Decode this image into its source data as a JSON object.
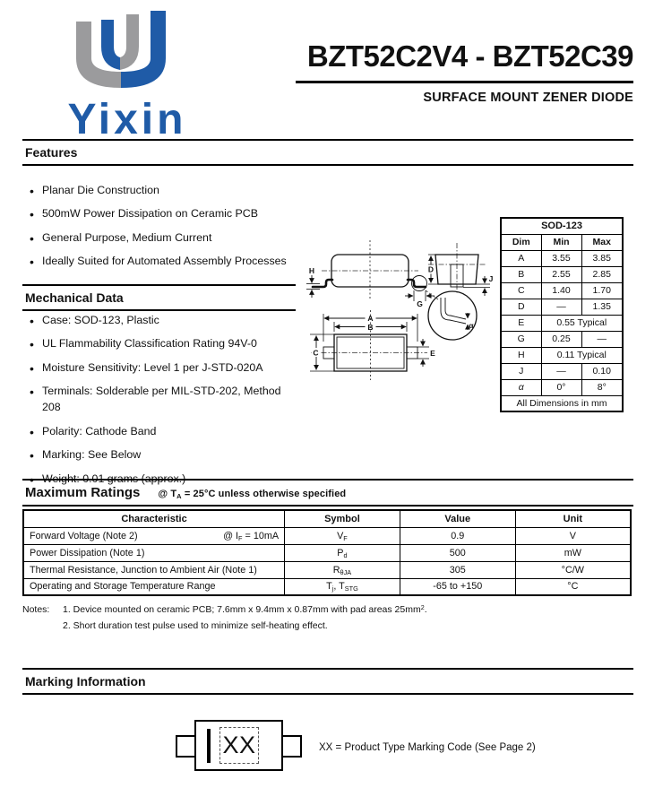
{
  "header": {
    "logo_text": "Yixin",
    "logo_blue": "#1f5ba7",
    "logo_gray": "#9b9b9d",
    "title": "BZT52C2V4 - BZT52C39",
    "subtitle": "SURFACE MOUNT ZENER DIODE"
  },
  "features": {
    "heading": "Features",
    "items": [
      "Planar Die Construction",
      "500mW Power Dissipation on Ceramic PCB",
      "General Purpose, Medium Current",
      "Ideally Suited for Automated Assembly Processes"
    ]
  },
  "mechanical": {
    "heading": "Mechanical Data",
    "items": [
      "Case: SOD-123, Plastic",
      "UL Flammability Classification Rating 94V-0",
      "Moisture Sensitivity: Level 1 per J-STD-020A",
      "Terminals: Solderable per MIL-STD-202, Method 208",
      "Polarity: Cathode Band",
      "Marking: See Below",
      "Weight: 0.01 grams (approx.)"
    ]
  },
  "package_drawing": {
    "labels": {
      "A": "A",
      "B": "B",
      "C": "C",
      "D": "D",
      "E": "E",
      "G": "G",
      "H": "H",
      "J": "J",
      "alpha": "α"
    }
  },
  "sod_table": {
    "title": "SOD-123",
    "headers": [
      "Dim",
      "Min",
      "Max"
    ],
    "rows": [
      {
        "dim": "A",
        "min": "3.55",
        "max": "3.85"
      },
      {
        "dim": "B",
        "min": "2.55",
        "max": "2.85"
      },
      {
        "dim": "C",
        "min": "1.40",
        "max": "1.70"
      },
      {
        "dim": "D",
        "min": "—",
        "max": "1.35"
      },
      {
        "dim": "E",
        "merged": "0.55 Typical"
      },
      {
        "dim": "G",
        "min": "0.25",
        "max": "—"
      },
      {
        "dim": "H",
        "merged": "0.11 Typical"
      },
      {
        "dim": "J",
        "min": "—",
        "max": "0.10"
      },
      {
        "dim": "α",
        "min": "0°",
        "max": "8°"
      }
    ],
    "footer": "All Dimensions in mm"
  },
  "max_ratings": {
    "heading": "Maximum Ratings",
    "condition": "@ T~A~ = 25°C unless otherwise specified",
    "headers": [
      "Characteristic",
      "Symbol",
      "Value",
      "Unit"
    ],
    "rows": [
      {
        "characteristic": "Forward Voltage (Note 2)",
        "condition": "@ I~F~ = 10mA",
        "symbol": "V~F~",
        "value": "0.9",
        "unit": "V"
      },
      {
        "characteristic": "Power Dissipation (Note 1)",
        "condition": "",
        "symbol": "P~d~",
        "value": "500",
        "unit": "mW"
      },
      {
        "characteristic": "Thermal Resistance, Junction to Ambient Air (Note 1)",
        "condition": "",
        "symbol": "R~θJA~",
        "value": "305",
        "unit": "°C/W"
      },
      {
        "characteristic": "Operating and Storage Temperature Range",
        "condition": "",
        "symbol": "T~j~, T~STG~",
        "value": "-65 to +150",
        "unit": "°C"
      }
    ]
  },
  "notes": {
    "label": "Notes:",
    "items": [
      "1. Device mounted on ceramic PCB; 7.6mm x 9.4mm x 0.87mm with pad areas 25mm^2^.",
      "2. Short duration test pulse used to minimize self-heating effect."
    ]
  },
  "marking": {
    "heading": "Marking Information",
    "code": "XX",
    "legend": "XX = Product Type Marking Code (See Page 2)"
  }
}
